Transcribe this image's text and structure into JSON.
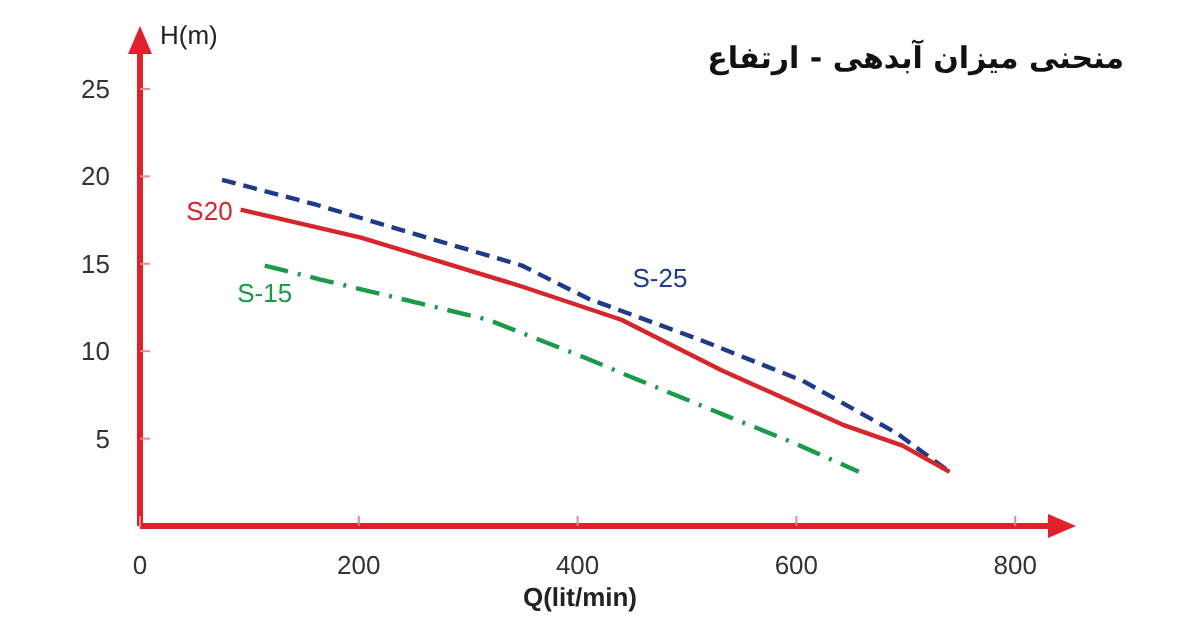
{
  "chart_data": {
    "type": "line",
    "title": "منحنی میزان آبدهی - ارتفاع",
    "xlabel": "Q(lit/min)",
    "ylabel": "H(m)",
    "xlim": [
      0,
      830
    ],
    "ylim": [
      0,
      27
    ],
    "xticks": [
      0,
      200,
      400,
      600,
      800
    ],
    "yticks": [
      5,
      10,
      15,
      20,
      25
    ],
    "grid": false,
    "legend": false,
    "series": [
      {
        "name": "S-25",
        "color": "#1f3a8a",
        "line_style": "dashed",
        "x": [
          75,
          160,
          257,
          349,
          410,
          514,
          606,
          692,
          740
        ],
        "values": [
          19.8,
          18.4,
          16.6,
          14.9,
          13.0,
          10.6,
          8.3,
          5.3,
          3.1
        ]
      },
      {
        "name": "S20",
        "color": "#d7262b",
        "line_style": "solid",
        "x": [
          92,
          202,
          349,
          440,
          532,
          642,
          697,
          740
        ],
        "values": [
          18.1,
          16.5,
          13.7,
          11.8,
          8.9,
          5.8,
          4.6,
          3.1
        ]
      },
      {
        "name": "S-15",
        "color": "#1a9a4a",
        "line_style": "dashdot",
        "x": [
          114,
          165,
          318,
          404,
          446,
          536,
          596,
          657
        ],
        "values": [
          14.9,
          14.1,
          11.8,
          9.7,
          8.6,
          6.3,
          4.8,
          3.1
        ]
      }
    ]
  }
}
